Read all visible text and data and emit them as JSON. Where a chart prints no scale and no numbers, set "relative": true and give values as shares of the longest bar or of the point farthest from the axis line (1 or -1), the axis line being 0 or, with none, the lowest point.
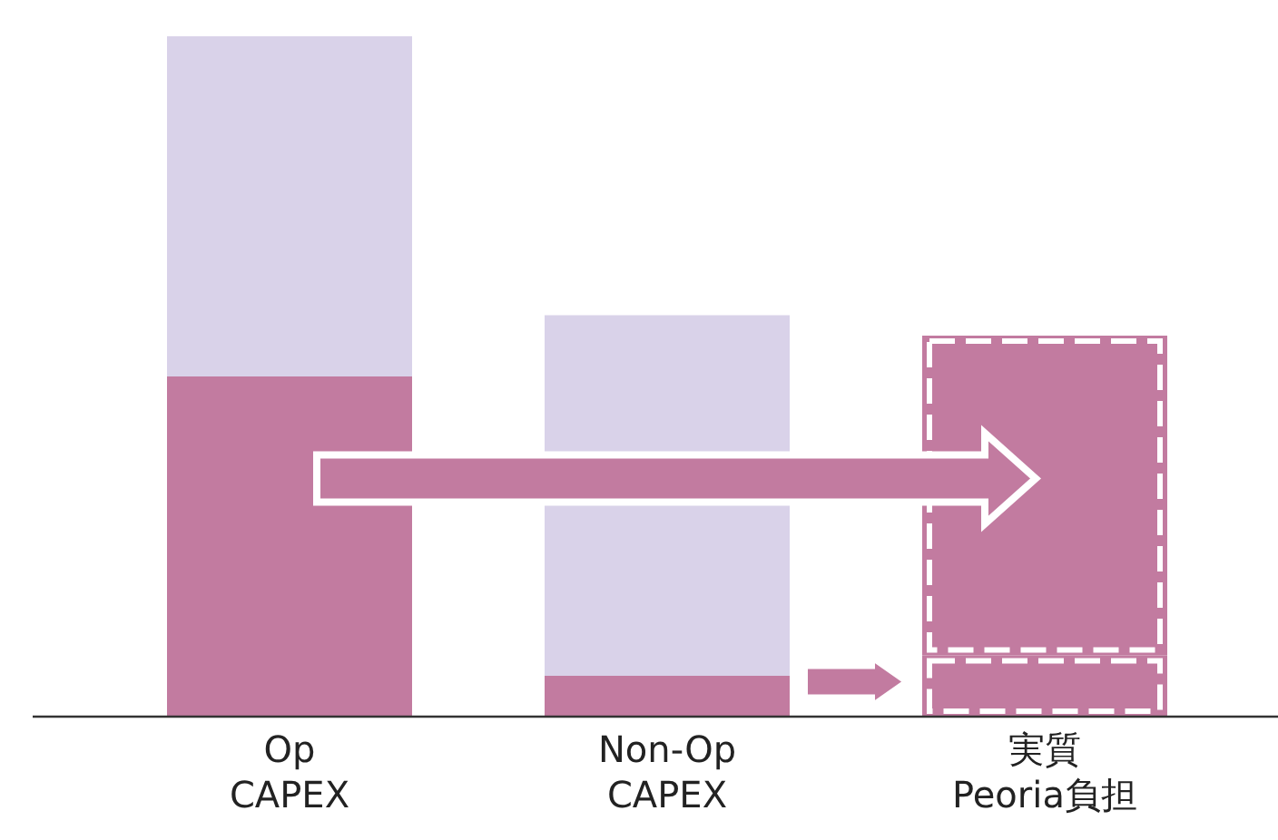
{
  "chart_data": {
    "type": "bar",
    "relative": true,
    "stacked": true,
    "categories": [
      "Op\nCAPEX",
      "Non-Op\nCAPEX",
      "実質\nPeoria負担"
    ],
    "series": [
      {
        "color": "#c27ba0",
        "values": [
          0.5,
          0.06,
          null
        ]
      },
      {
        "color": "#d9d2e9",
        "values": [
          0.5,
          0.53,
          null
        ]
      },
      {
        "color": "#c27ba0",
        "values": [
          null,
          null,
          0.09
        ],
        "line_style": "dashed"
      },
      {
        "color": "#c27ba0",
        "values": [
          null,
          null,
          0.47
        ],
        "line_style": "dashed"
      }
    ]
  }
}
